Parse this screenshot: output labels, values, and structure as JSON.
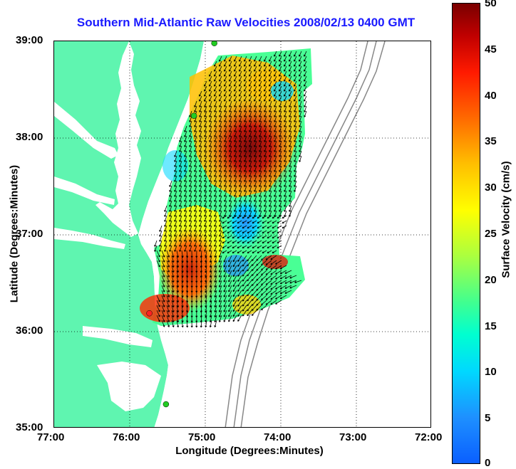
{
  "title": "Southern Mid-Atlantic Raw Velocities 2008/02/13 0400 GMT",
  "x_axis": {
    "label": "Longitude (Degrees:Minutes)",
    "ticks": [
      "77:00",
      "76:00",
      "75:00",
      "74:00",
      "73:00",
      "72:00"
    ]
  },
  "y_axis": {
    "label": "Latitude (Degrees:Minutes)",
    "ticks": [
      "39:00",
      "38:00",
      "37:00",
      "36:00",
      "35:00"
    ]
  },
  "colorbar": {
    "label": "Surface Velocity (cm/s)",
    "ticks": [
      "50",
      "45",
      "40",
      "35",
      "30",
      "25",
      "20",
      "15",
      "10",
      "5",
      "0"
    ],
    "range": [
      0,
      50
    ]
  },
  "colors": {
    "land": "#5ff5b0",
    "title": "#1a1aff",
    "station_green": "#22cc22",
    "station_red": "#ff2222",
    "bathymetry": "#888888"
  },
  "map": {
    "lon_range": [
      -77,
      -72
    ],
    "lat_range": [
      35,
      39
    ],
    "grid": true,
    "stations": [
      {
        "lon": -74.88,
        "lat": 38.98,
        "status": "green"
      },
      {
        "lon": -75.15,
        "lat": 38.23,
        "status": "green"
      },
      {
        "lon": -75.74,
        "lat": 36.19,
        "status": "red"
      },
      {
        "lon": -75.52,
        "lat": 35.25,
        "status": "green"
      }
    ]
  }
}
